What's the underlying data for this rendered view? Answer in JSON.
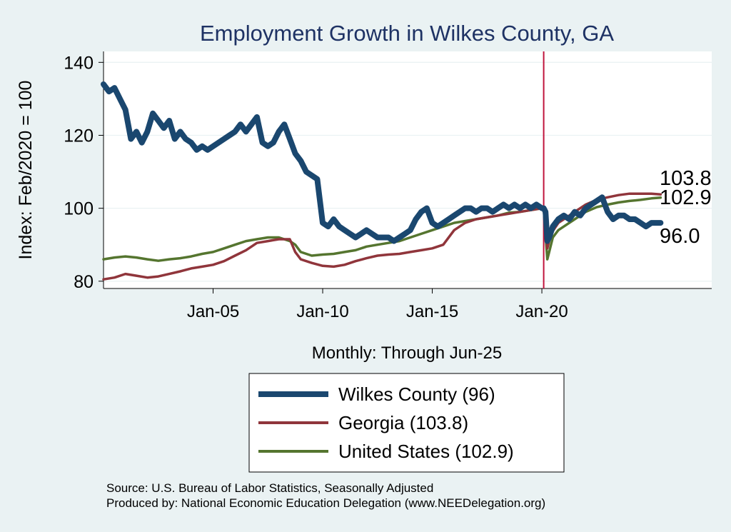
{
  "chart_data": {
    "type": "line",
    "title": "Employment Growth in Wilkes  County, GA",
    "xlabel": "Monthly: Through Jun-25",
    "ylabel": "Index: Feb/2020 = 100",
    "ylim": [
      78,
      143
    ],
    "xlim": [
      "2000-01",
      "2027-10"
    ],
    "yticks": [
      80,
      100,
      120,
      140
    ],
    "xticks": [
      {
        "label": "Jan-05",
        "date": "2005-01"
      },
      {
        "label": "Jan-10",
        "date": "2010-01"
      },
      {
        "label": "Jan-15",
        "date": "2015-01"
      },
      {
        "label": "Jan-20",
        "date": "2020-01"
      }
    ],
    "vline": {
      "date": "2020-02",
      "color": "#c0143c"
    },
    "grid": true,
    "legend_position": "bottom",
    "end_labels": [
      "103.8",
      "102.9",
      "96.0"
    ],
    "series": [
      {
        "name": "Wilkes  County (96)",
        "color": "#1a476f",
        "width": "thick",
        "points": [
          [
            "2000-01",
            134
          ],
          [
            "2000-04",
            132
          ],
          [
            "2000-07",
            133
          ],
          [
            "2000-10",
            130
          ],
          [
            "2001-01",
            127
          ],
          [
            "2001-04",
            119
          ],
          [
            "2001-07",
            121
          ],
          [
            "2001-10",
            118
          ],
          [
            "2002-01",
            121
          ],
          [
            "2002-04",
            126
          ],
          [
            "2002-07",
            124
          ],
          [
            "2002-10",
            122
          ],
          [
            "2003-01",
            124
          ],
          [
            "2003-04",
            119
          ],
          [
            "2003-07",
            121
          ],
          [
            "2003-10",
            119
          ],
          [
            "2004-01",
            118
          ],
          [
            "2004-04",
            116
          ],
          [
            "2004-07",
            117
          ],
          [
            "2004-10",
            116
          ],
          [
            "2005-01",
            117
          ],
          [
            "2005-04",
            118
          ],
          [
            "2005-07",
            119
          ],
          [
            "2005-10",
            120
          ],
          [
            "2006-01",
            121
          ],
          [
            "2006-04",
            123
          ],
          [
            "2006-07",
            121
          ],
          [
            "2006-10",
            123
          ],
          [
            "2007-01",
            125
          ],
          [
            "2007-04",
            118
          ],
          [
            "2007-07",
            117
          ],
          [
            "2007-10",
            118
          ],
          [
            "2008-01",
            121
          ],
          [
            "2008-04",
            123
          ],
          [
            "2008-07",
            119
          ],
          [
            "2008-10",
            115
          ],
          [
            "2009-01",
            113
          ],
          [
            "2009-04",
            110
          ],
          [
            "2009-07",
            109
          ],
          [
            "2009-10",
            108
          ],
          [
            "2010-01",
            96
          ],
          [
            "2010-04",
            95
          ],
          [
            "2010-07",
            97
          ],
          [
            "2010-10",
            95
          ],
          [
            "2011-01",
            94
          ],
          [
            "2011-04",
            93
          ],
          [
            "2011-07",
            92
          ],
          [
            "2011-10",
            93
          ],
          [
            "2012-01",
            94
          ],
          [
            "2012-04",
            93
          ],
          [
            "2012-07",
            92
          ],
          [
            "2012-10",
            92
          ],
          [
            "2013-01",
            92
          ],
          [
            "2013-04",
            91
          ],
          [
            "2013-07",
            92
          ],
          [
            "2013-10",
            93
          ],
          [
            "2014-01",
            94
          ],
          [
            "2014-04",
            97
          ],
          [
            "2014-07",
            99
          ],
          [
            "2014-10",
            100
          ],
          [
            "2015-01",
            96
          ],
          [
            "2015-04",
            95
          ],
          [
            "2015-07",
            96
          ],
          [
            "2015-10",
            97
          ],
          [
            "2016-01",
            98
          ],
          [
            "2016-04",
            99
          ],
          [
            "2016-07",
            100
          ],
          [
            "2016-10",
            100
          ],
          [
            "2017-01",
            99
          ],
          [
            "2017-04",
            100
          ],
          [
            "2017-07",
            100
          ],
          [
            "2017-10",
            99
          ],
          [
            "2018-01",
            100
          ],
          [
            "2018-04",
            101
          ],
          [
            "2018-07",
            100
          ],
          [
            "2018-10",
            101
          ],
          [
            "2019-01",
            100
          ],
          [
            "2019-04",
            101
          ],
          [
            "2019-07",
            100
          ],
          [
            "2019-10",
            101
          ],
          [
            "2020-01",
            100
          ],
          [
            "2020-02",
            100
          ],
          [
            "2020-03",
            99
          ],
          [
            "2020-04",
            91
          ],
          [
            "2020-05",
            92
          ],
          [
            "2020-07",
            95
          ],
          [
            "2020-10",
            97
          ],
          [
            "2021-01",
            98
          ],
          [
            "2021-04",
            97
          ],
          [
            "2021-07",
            99
          ],
          [
            "2021-10",
            98
          ],
          [
            "2022-01",
            100
          ],
          [
            "2022-04",
            101
          ],
          [
            "2022-07",
            102
          ],
          [
            "2022-10",
            103
          ],
          [
            "2023-01",
            99
          ],
          [
            "2023-04",
            97
          ],
          [
            "2023-07",
            98
          ],
          [
            "2023-10",
            98
          ],
          [
            "2024-01",
            97
          ],
          [
            "2024-04",
            97
          ],
          [
            "2024-07",
            96
          ],
          [
            "2024-10",
            95
          ],
          [
            "2025-01",
            96
          ],
          [
            "2025-06",
            96.0
          ]
        ]
      },
      {
        "name": "Georgia (103.8)",
        "color": "#90353b",
        "width": "normal",
        "points": [
          [
            "2000-01",
            80.5
          ],
          [
            "2000-07",
            81
          ],
          [
            "2001-01",
            82
          ],
          [
            "2001-07",
            81.5
          ],
          [
            "2002-01",
            81
          ],
          [
            "2002-07",
            81.3
          ],
          [
            "2003-01",
            82
          ],
          [
            "2003-07",
            82.7
          ],
          [
            "2004-01",
            83.5
          ],
          [
            "2004-07",
            84
          ],
          [
            "2005-01",
            84.5
          ],
          [
            "2005-07",
            85.5
          ],
          [
            "2006-01",
            87
          ],
          [
            "2006-07",
            88.5
          ],
          [
            "2007-01",
            90.5
          ],
          [
            "2007-07",
            91
          ],
          [
            "2008-01",
            91.5
          ],
          [
            "2008-07",
            91.5
          ],
          [
            "2008-10",
            88
          ],
          [
            "2009-01",
            86
          ],
          [
            "2009-07",
            85
          ],
          [
            "2010-01",
            84.2
          ],
          [
            "2010-07",
            84
          ],
          [
            "2011-01",
            84.5
          ],
          [
            "2011-07",
            85.5
          ],
          [
            "2012-01",
            86.3
          ],
          [
            "2012-07",
            87
          ],
          [
            "2013-01",
            87.3
          ],
          [
            "2013-07",
            87.5
          ],
          [
            "2014-01",
            88
          ],
          [
            "2014-07",
            88.5
          ],
          [
            "2015-01",
            89
          ],
          [
            "2015-07",
            90
          ],
          [
            "2016-01",
            94
          ],
          [
            "2016-07",
            96
          ],
          [
            "2017-01",
            97
          ],
          [
            "2017-07",
            97.5
          ],
          [
            "2018-01",
            98
          ],
          [
            "2018-07",
            98.5
          ],
          [
            "2019-01",
            99
          ],
          [
            "2019-07",
            99.5
          ],
          [
            "2020-01",
            100
          ],
          [
            "2020-02",
            100
          ],
          [
            "2020-04",
            89
          ],
          [
            "2020-06",
            93
          ],
          [
            "2020-10",
            96
          ],
          [
            "2021-01",
            97
          ],
          [
            "2021-07",
            99
          ],
          [
            "2022-01",
            101
          ],
          [
            "2022-07",
            102.3
          ],
          [
            "2023-01",
            103
          ],
          [
            "2023-07",
            103.6
          ],
          [
            "2024-01",
            104
          ],
          [
            "2024-07",
            104
          ],
          [
            "2025-01",
            104
          ],
          [
            "2025-06",
            103.8
          ]
        ]
      },
      {
        "name": "United States (102.9)",
        "color": "#55752f",
        "width": "normal",
        "points": [
          [
            "2000-01",
            86
          ],
          [
            "2000-07",
            86.5
          ],
          [
            "2001-01",
            86.8
          ],
          [
            "2001-07",
            86.5
          ],
          [
            "2002-01",
            86
          ],
          [
            "2002-07",
            85.6
          ],
          [
            "2003-01",
            86
          ],
          [
            "2003-07",
            86.3
          ],
          [
            "2004-01",
            86.8
          ],
          [
            "2004-07",
            87.5
          ],
          [
            "2005-01",
            88
          ],
          [
            "2005-07",
            89
          ],
          [
            "2006-01",
            90
          ],
          [
            "2006-07",
            91
          ],
          [
            "2007-01",
            91.5
          ],
          [
            "2007-07",
            92
          ],
          [
            "2008-01",
            92
          ],
          [
            "2008-07",
            91
          ],
          [
            "2008-10",
            90
          ],
          [
            "2009-01",
            88
          ],
          [
            "2009-07",
            87
          ],
          [
            "2010-01",
            87.3
          ],
          [
            "2010-07",
            87.5
          ],
          [
            "2011-01",
            88
          ],
          [
            "2011-07",
            88.5
          ],
          [
            "2012-01",
            89.5
          ],
          [
            "2012-07",
            90
          ],
          [
            "2013-01",
            90.5
          ],
          [
            "2013-07",
            91
          ],
          [
            "2014-01",
            92
          ],
          [
            "2014-07",
            93
          ],
          [
            "2015-01",
            94
          ],
          [
            "2015-07",
            95
          ],
          [
            "2016-01",
            96
          ],
          [
            "2016-07",
            96.5
          ],
          [
            "2017-01",
            97
          ],
          [
            "2017-07",
            97.5
          ],
          [
            "2018-01",
            98
          ],
          [
            "2018-07",
            98.8
          ],
          [
            "2019-01",
            99
          ],
          [
            "2019-07",
            99.5
          ],
          [
            "2020-01",
            100
          ],
          [
            "2020-02",
            100
          ],
          [
            "2020-04",
            86
          ],
          [
            "2020-05",
            88
          ],
          [
            "2020-07",
            92
          ],
          [
            "2020-10",
            94
          ],
          [
            "2021-01",
            95
          ],
          [
            "2021-07",
            97
          ],
          [
            "2022-01",
            99
          ],
          [
            "2022-07",
            100.3
          ],
          [
            "2023-01",
            101
          ],
          [
            "2023-07",
            101.6
          ],
          [
            "2024-01",
            102
          ],
          [
            "2024-07",
            102.3
          ],
          [
            "2025-01",
            102.7
          ],
          [
            "2025-06",
            102.9
          ]
        ]
      }
    ]
  },
  "footer": {
    "source": "Source: U.S. Bureau of Labor Statistics, Seasonally Adjusted",
    "produced_by": "Produced by: National Economic Education Delegation (www.NEEDelegation.org)"
  }
}
